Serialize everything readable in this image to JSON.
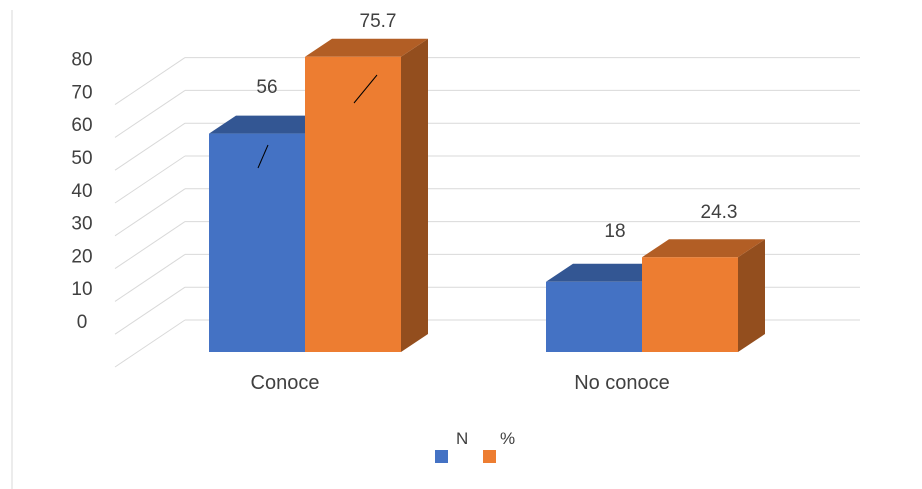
{
  "chart_data": {
    "type": "bar",
    "categories": [
      "Conoce",
      "No conoce"
    ],
    "series": [
      {
        "name": "N",
        "values": [
          56,
          18
        ],
        "labels": [
          "56",
          "18"
        ],
        "color": "#4472C4"
      },
      {
        "name": "%",
        "values": [
          75.7,
          24.3
        ],
        "labels": [
          "75.7",
          "24.3"
        ],
        "color": "#ED7D31"
      }
    ],
    "yticks": [
      "0",
      "10",
      "20",
      "30",
      "40",
      "50",
      "60",
      "70",
      "80"
    ],
    "ylim": [
      0,
      80
    ],
    "grid": true,
    "style": "3d-clustered-column",
    "legend_position": "bottom"
  }
}
